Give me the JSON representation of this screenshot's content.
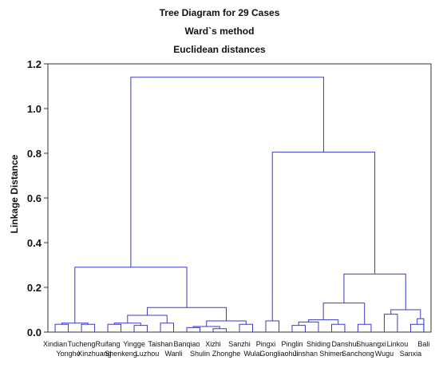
{
  "chart_data": {
    "type": "dendrogram",
    "title": "Tree Diagram for 29 Cases",
    "subtitle_lines": [
      "Ward`s method",
      "Euclidean distances"
    ],
    "xlabel": "",
    "ylabel": "Linkage Distance",
    "ylim": [
      0,
      1.2
    ],
    "yticks": [
      "0.0",
      "0.2",
      "0.4",
      "0.6",
      "0.8",
      "1.0",
      "1.2"
    ],
    "grid": false,
    "line_color": "#3a3ac8",
    "leaves_top_row": [
      "Xindian",
      "Tucheng",
      "Ruifang",
      "Yingge",
      "Taishan",
      "Banqiao",
      "Xizhi",
      "Sanzhi",
      "Pingxi",
      "Pinglin",
      "Shiding",
      "Danshui",
      "Shuangxi",
      "Linkou",
      "Bali"
    ],
    "leaves_bottom_row": [
      "Yonghe",
      "Xinzhuang",
      "Shenkeng",
      "Luzhou",
      "Wanli",
      "Shulin",
      "Zhonghe",
      "Wulai",
      "Gongliaohui",
      "Jinshan",
      "Shimen",
      "Sanchong",
      "Wugu",
      "Sanxia"
    ],
    "leaf_order": [
      "Xindian",
      "Yonghe",
      "Tucheng",
      "Xinzhuang",
      "Ruifang",
      "Shenkeng",
      "Yingge",
      "Luzhou",
      "Taishan",
      "Wanli",
      "Banqiao",
      "Shulin",
      "Xizhi",
      "Zhonghe",
      "Sanzhi",
      "Wulai",
      "Pingxi",
      "Gongliaohui",
      "Pinglin",
      "Jinshan",
      "Shiding",
      "Shimen",
      "Danshui",
      "Sanchong",
      "Shuangxi",
      "Wugu",
      "Linkou",
      "Sanxia",
      "Bali"
    ],
    "merges": [
      {
        "left": 0,
        "right": 1,
        "height": 0.035
      },
      {
        "left": 2,
        "right": 3,
        "height": 0.035
      },
      {
        "left": "m0",
        "right": "m1",
        "height": 0.04
      },
      {
        "left": 4,
        "right": 5,
        "height": 0.035
      },
      {
        "left": 6,
        "right": 7,
        "height": 0.03
      },
      {
        "left": "m3",
        "right": "m4",
        "height": 0.04
      },
      {
        "left": 8,
        "right": 9,
        "height": 0.04
      },
      {
        "left": "m5",
        "right": "m6",
        "height": 0.075
      },
      {
        "left": 10,
        "right": 11,
        "height": 0.02
      },
      {
        "left": 12,
        "right": 13,
        "height": 0.015
      },
      {
        "left": "m8",
        "right": "m9",
        "height": 0.025
      },
      {
        "left": 14,
        "right": 15,
        "height": 0.035
      },
      {
        "left": "m10",
        "right": "m11",
        "height": 0.05
      },
      {
        "left": "m12",
        "right": null,
        "height": 0.08,
        "note": "partner is m7"
      },
      {
        "left": "m7",
        "right": "m12",
        "height": 0.11
      },
      {
        "left": "m2",
        "right": "m14",
        "height": 0.29
      },
      {
        "left": 16,
        "right": 17,
        "height": 0.05
      },
      {
        "left": 18,
        "right": 19,
        "height": 0.03
      },
      {
        "left": "m17",
        "right": "m16",
        "height": 0.045
      },
      {
        "left": 20,
        "right": 21,
        "height": 0.035
      },
      {
        "left": "m18",
        "right": "m19",
        "height": 0.055
      },
      {
        "left": 22,
        "right": 23,
        "height": 0.035
      },
      {
        "left": "m20",
        "right": "m21",
        "height": 0.13
      },
      {
        "left": 24,
        "right": 25,
        "height": 0.08
      },
      {
        "left": 26,
        "right": 27,
        "height": 0.035
      },
      {
        "left": "m24",
        "right": 28,
        "height": 0.06
      },
      {
        "left": "m23",
        "right": "m25",
        "height": 0.1
      },
      {
        "left": "m22",
        "right": "m26",
        "height": 0.26
      },
      {
        "left": "m16b",
        "right": "m27",
        "height": 0.805,
        "note": "left branch at height 0.155"
      },
      {
        "left": "m15",
        "right": "m28",
        "height": 1.14
      }
    ]
  }
}
